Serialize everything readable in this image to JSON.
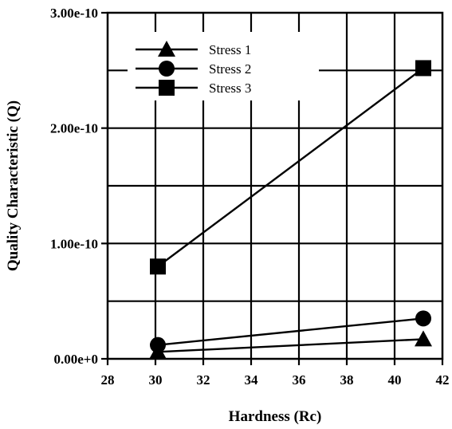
{
  "chart_data": {
    "type": "line",
    "xlabel": "Hardness (Rc)",
    "ylabel": "Quality Characteristic (Q)",
    "xlim": [
      28,
      42
    ],
    "ylim": [
      0,
      3e-10
    ],
    "x_ticks": [
      28,
      30,
      32,
      34,
      36,
      38,
      40,
      42
    ],
    "x_tick_labels": [
      "28",
      "30",
      "32",
      "34",
      "36",
      "38",
      "40",
      "42"
    ],
    "y_ticks": [
      0,
      1e-10,
      2e-10,
      3e-10
    ],
    "y_tick_labels": [
      "0.00e+0",
      "1.00e-10",
      "2.00e-10",
      "3.00e-10"
    ],
    "y_minor_step": 5e-11,
    "grid": true,
    "legend_position": "top-left",
    "series": [
      {
        "name": "Stress 1",
        "marker": "triangle",
        "x": [
          30.1,
          41.2
        ],
        "y": [
          6e-12,
          1.7e-11
        ]
      },
      {
        "name": "Stress 2",
        "marker": "circle",
        "x": [
          30.1,
          41.2
        ],
        "y": [
          1.2e-11,
          3.5e-11
        ]
      },
      {
        "name": "Stress 3",
        "marker": "square",
        "x": [
          30.1,
          41.2
        ],
        "y": [
          8e-11,
          2.52e-10
        ]
      }
    ]
  }
}
